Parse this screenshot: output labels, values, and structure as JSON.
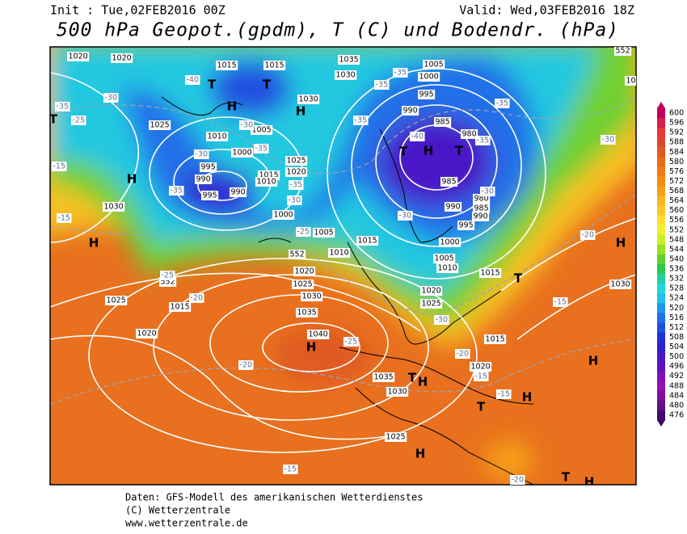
{
  "header": {
    "init": "Init : Tue,02FEB2016 00Z",
    "valid": "Valid: Wed,03FEB2016 18Z",
    "title": "500 hPa Geopot.(gpdm), T (C) und Bodendr. (hPa)"
  },
  "footer": [
    "Daten: GFS-Modell des amerikanischen Wetterdienstes",
    "(C) Wetterzentrale",
    "www.wetterzentrale.de"
  ],
  "colorbar": {
    "ticks": [
      600,
      596,
      592,
      588,
      584,
      580,
      576,
      572,
      568,
      564,
      560,
      556,
      552,
      548,
      544,
      540,
      536,
      532,
      528,
      524,
      520,
      516,
      512,
      508,
      504,
      500,
      496,
      492,
      488,
      484,
      480,
      476
    ],
    "colors": [
      "#c0005a",
      "#d81e4a",
      "#e8383a",
      "#d84a2a",
      "#e05a20",
      "#e86a1a",
      "#f07c14",
      "#f48c14",
      "#f8a018",
      "#fcb41e",
      "#ffc828",
      "#ffe030",
      "#f0f030",
      "#c8f028",
      "#98e028",
      "#60d030",
      "#30c850",
      "#20d0a0",
      "#20d8d8",
      "#20c0f0",
      "#2098f0",
      "#2070e8",
      "#2050e0",
      "#2030d8",
      "#3020d0",
      "#4818c8",
      "#6010c0",
      "#8010b8",
      "#9810b0",
      "#8010a0",
      "#601088",
      "#400870"
    ]
  },
  "map_labels": {
    "isobars": [
      "1020",
      "1020",
      "1015",
      "1015",
      "1035",
      "1030",
      "1005",
      "1000",
      "995",
      "990",
      "985",
      "980",
      "1025",
      "1010",
      "1005",
      "1030",
      "1000",
      "995",
      "990",
      "995",
      "990",
      "1015",
      "1010",
      "1020",
      "1025",
      "985",
      "980",
      "985",
      "990",
      "990",
      "995",
      "1000",
      "1030",
      "1000",
      "1005",
      "1015",
      "1010",
      "1005",
      "1010",
      "1015",
      "1020",
      "1025",
      "1020",
      "1025",
      "1030",
      "1035",
      "1040",
      "1015",
      "1025",
      "1020",
      "1015",
      "1020",
      "1035",
      "1030",
      "1025",
      "1035",
      "1030",
      "552",
      "552",
      "552"
    ],
    "temperatures": [
      "-40",
      "-30",
      "-35",
      "-25",
      "-30",
      "-35",
      "-30",
      "-35",
      "-35",
      "-30",
      "-25",
      "-35",
      "-35",
      "-35",
      "-40",
      "-35",
      "-35",
      "-30",
      "-30",
      "-30",
      "-20",
      "-25",
      "-20",
      "-15",
      "-15",
      "-25",
      "-20",
      "-20",
      "-15",
      "-15",
      "-15",
      "-20",
      "-15",
      "-30"
    ],
    "centers": [
      "T",
      "T",
      "H",
      "H",
      "T",
      "H",
      "T",
      "H",
      "H",
      "H",
      "T",
      "H",
      "T",
      "H",
      "T",
      "H",
      "H",
      "H",
      "T",
      "H",
      "T"
    ]
  }
}
